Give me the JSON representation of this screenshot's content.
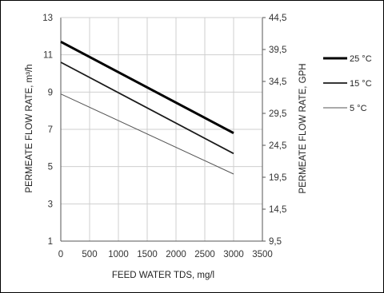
{
  "chart_data": {
    "type": "line",
    "x": [
      0,
      3000
    ],
    "xlabel": "FEED WATER TDS, mg/l",
    "ylabel": "PERMEATE FLOW RATE, m³/h",
    "y2label": "PERMEATE FLOW RATE, GPH",
    "xlim": [
      0,
      3500
    ],
    "ylim": [
      1,
      13
    ],
    "y2lim": [
      9.5,
      44.5
    ],
    "xticks": [
      "0",
      "500",
      "1000",
      "1500",
      "2000",
      "2500",
      "3000",
      "3500"
    ],
    "yticks": [
      "1",
      "3",
      "5",
      "7",
      "9",
      "11",
      "13"
    ],
    "y2ticks": [
      "9,5",
      "14,5",
      "19,5",
      "24,5",
      "29,5",
      "34,5",
      "39,5",
      "44,5"
    ],
    "grid": true,
    "legend_position": "right",
    "series": [
      {
        "name": "25 °C",
        "values": [
          11.7,
          6.8
        ],
        "color": "#000000",
        "width": "heavy"
      },
      {
        "name": "15 °C",
        "values": [
          10.6,
          5.7
        ],
        "color": "#1a1a1a",
        "width": "medium"
      },
      {
        "name": "5 °C",
        "values": [
          8.9,
          4.6
        ],
        "color": "#555555",
        "width": "light"
      }
    ]
  }
}
